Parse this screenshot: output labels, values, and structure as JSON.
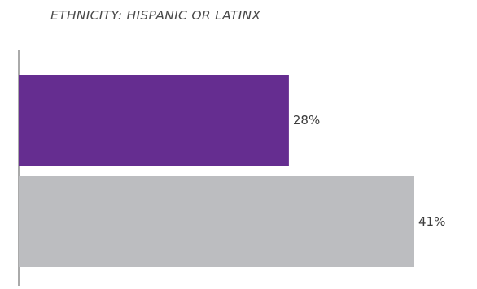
{
  "chart_data": {
    "type": "bar",
    "orientation": "horizontal",
    "title": "ETHNICITY: HISPANIC OR LATINX",
    "xlabel": "",
    "ylabel": "",
    "series": [
      {
        "value": 28,
        "label": "28%",
        "color": "#652d90"
      },
      {
        "value": 41,
        "label": "41%",
        "color": "#bcbdc0"
      }
    ],
    "xlim": [
      0,
      50
    ],
    "grid": false,
    "legend": "none"
  }
}
